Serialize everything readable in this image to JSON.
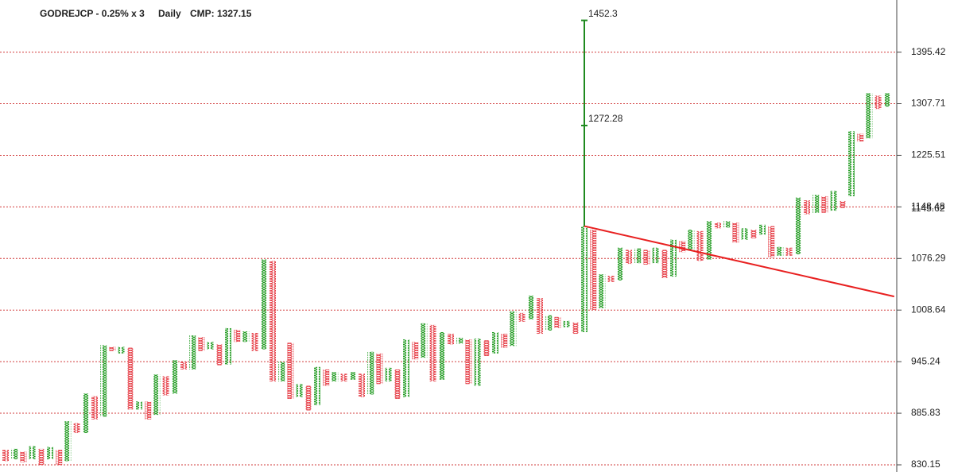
{
  "chart_data": {
    "type": "pnf",
    "title": "GODREJCP - 0.25% x 3",
    "timeframe": "Daily",
    "cmp_label": "CMP: 1327.15",
    "colors": {
      "X": "#1f9a1f",
      "O": "#e6414a",
      "title": "#222222",
      "timeframe": "#1f9a1f",
      "cmp": "#e02020"
    },
    "log_scale": true,
    "grid": true,
    "ylim": [
      822.7,
      1490
    ],
    "yticks": [
      830.15,
      885.83,
      945.24,
      1008.64,
      1076.29,
      1148.48,
      1225.51,
      1307.71,
      1395.42
    ],
    "columns": [
      {
        "box": "O",
        "high": 846,
        "low": 834
      },
      {
        "box": "X",
        "high": 847,
        "low": 836
      },
      {
        "box": "O",
        "high": 844,
        "low": 833
      },
      {
        "box": "X",
        "high": 850,
        "low": 836
      },
      {
        "box": "O",
        "high": 847,
        "low": 830
      },
      {
        "box": "X",
        "high": 849,
        "low": 836
      },
      {
        "box": "O",
        "high": 846,
        "low": 830
      },
      {
        "box": "X",
        "high": 877,
        "low": 834
      },
      {
        "box": "O",
        "high": 875,
        "low": 864
      },
      {
        "box": "X",
        "high": 908,
        "low": 864
      },
      {
        "box": "O",
        "high": 905,
        "low": 879
      },
      {
        "box": "X",
        "high": 965,
        "low": 882
      },
      {
        "box": "O",
        "high": 963,
        "low": 958
      },
      {
        "box": "X",
        "high": 963,
        "low": 955
      },
      {
        "box": "O",
        "high": 962,
        "low": 890
      },
      {
        "box": "X",
        "high": 899,
        "low": 890
      },
      {
        "box": "O",
        "high": 899,
        "low": 879
      },
      {
        "box": "X",
        "high": 930,
        "low": 884
      },
      {
        "box": "O",
        "high": 928,
        "low": 906
      },
      {
        "box": "X",
        "high": 947,
        "low": 908
      },
      {
        "box": "O",
        "high": 945,
        "low": 936
      },
      {
        "box": "X",
        "high": 977,
        "low": 936
      },
      {
        "box": "O",
        "high": 975,
        "low": 958
      },
      {
        "box": "X",
        "high": 969,
        "low": 960
      },
      {
        "box": "O",
        "high": 966,
        "low": 941
      },
      {
        "box": "X",
        "high": 986,
        "low": 942
      },
      {
        "box": "O",
        "high": 984,
        "low": 969
      },
      {
        "box": "X",
        "high": 982,
        "low": 969
      },
      {
        "box": "O",
        "high": 980,
        "low": 958
      },
      {
        "box": "X",
        "high": 1075,
        "low": 960
      },
      {
        "box": "O",
        "high": 1073,
        "low": 922
      },
      {
        "box": "X",
        "high": 945,
        "low": 922
      },
      {
        "box": "O",
        "high": 968,
        "low": 902
      },
      {
        "box": "X",
        "high": 919,
        "low": 904
      },
      {
        "box": "O",
        "high": 917,
        "low": 889
      },
      {
        "box": "X",
        "high": 939,
        "low": 895
      },
      {
        "box": "O",
        "high": 936,
        "low": 917
      },
      {
        "box": "X",
        "high": 933,
        "low": 922
      },
      {
        "box": "O",
        "high": 931,
        "low": 922
      },
      {
        "box": "X",
        "high": 933,
        "low": 924
      },
      {
        "box": "O",
        "high": 931,
        "low": 904
      },
      {
        "box": "X",
        "high": 957,
        "low": 907
      },
      {
        "box": "O",
        "high": 955,
        "low": 919
      },
      {
        "box": "X",
        "high": 938,
        "low": 922
      },
      {
        "box": "O",
        "high": 936,
        "low": 902
      },
      {
        "box": "X",
        "high": 972,
        "low": 904
      },
      {
        "box": "O",
        "high": 969,
        "low": 948
      },
      {
        "box": "X",
        "high": 992,
        "low": 950
      },
      {
        "box": "O",
        "high": 990,
        "low": 922
      },
      {
        "box": "X",
        "high": 981,
        "low": 924
      },
      {
        "box": "O",
        "high": 979,
        "low": 966
      },
      {
        "box": "X",
        "high": 974,
        "low": 967
      },
      {
        "box": "O",
        "high": 972,
        "low": 919
      },
      {
        "box": "X",
        "high": 973,
        "low": 917
      },
      {
        "box": "O",
        "high": 971,
        "low": 952
      },
      {
        "box": "X",
        "high": 981,
        "low": 955
      },
      {
        "box": "O",
        "high": 979,
        "low": 962
      },
      {
        "box": "X",
        "high": 1007,
        "low": 964
      },
      {
        "box": "O",
        "high": 1005,
        "low": 994
      },
      {
        "box": "X",
        "high": 1027,
        "low": 997
      },
      {
        "box": "O",
        "high": 1024,
        "low": 979
      },
      {
        "box": "X",
        "high": 1002,
        "low": 983
      },
      {
        "box": "O",
        "high": 1000,
        "low": 986
      },
      {
        "box": "X",
        "high": 995,
        "low": 987
      },
      {
        "box": "O",
        "high": 993,
        "low": 979
      },
      {
        "box": "X",
        "high": 1121,
        "low": 981
      },
      {
        "box": "O",
        "high": 1116,
        "low": 1009
      },
      {
        "box": "X",
        "high": 1055,
        "low": 1011
      },
      {
        "box": "O",
        "high": 1053,
        "low": 1045
      },
      {
        "box": "X",
        "high": 1091,
        "low": 1047
      },
      {
        "box": "O",
        "high": 1088,
        "low": 1069
      },
      {
        "box": "X",
        "high": 1090,
        "low": 1070
      },
      {
        "box": "O",
        "high": 1088,
        "low": 1068
      },
      {
        "box": "X",
        "high": 1091,
        "low": 1070
      },
      {
        "box": "O",
        "high": 1088,
        "low": 1050
      },
      {
        "box": "X",
        "high": 1102,
        "low": 1052
      },
      {
        "box": "O",
        "high": 1100,
        "low": 1085
      },
      {
        "box": "X",
        "high": 1116,
        "low": 1087
      },
      {
        "box": "O",
        "high": 1114,
        "low": 1073
      },
      {
        "box": "X",
        "high": 1128,
        "low": 1075
      },
      {
        "box": "O",
        "high": 1126,
        "low": 1118
      },
      {
        "box": "X",
        "high": 1128,
        "low": 1119
      },
      {
        "box": "O",
        "high": 1126,
        "low": 1098
      },
      {
        "box": "X",
        "high": 1118,
        "low": 1102
      },
      {
        "box": "O",
        "high": 1116,
        "low": 1104
      },
      {
        "box": "X",
        "high": 1123,
        "low": 1109
      },
      {
        "box": "O",
        "high": 1121,
        "low": 1078
      },
      {
        "box": "X",
        "high": 1092,
        "low": 1080
      },
      {
        "box": "O",
        "high": 1091,
        "low": 1080
      },
      {
        "box": "X",
        "high": 1162,
        "low": 1082
      },
      {
        "box": "O",
        "high": 1158,
        "low": 1138
      },
      {
        "box": "X",
        "high": 1166,
        "low": 1140
      },
      {
        "box": "O",
        "high": 1164,
        "low": 1140
      },
      {
        "box": "X",
        "high": 1172,
        "low": 1143
      },
      {
        "box": "O",
        "high": 1157,
        "low": 1147
      },
      {
        "box": "X",
        "high": 1263,
        "low": 1164
      },
      {
        "box": "O",
        "high": 1259,
        "low": 1247
      },
      {
        "box": "X",
        "high": 1325,
        "low": 1252
      },
      {
        "box": "O",
        "high": 1321,
        "low": 1299
      },
      {
        "box": "X",
        "high": 1325,
        "low": 1303
      }
    ],
    "target": {
      "x": 65,
      "base": 1121,
      "values": [
        1272.28,
        1452.3
      ],
      "color": "#1f8a1f"
    },
    "trendline": {
      "x": [
        65,
        99.8
      ],
      "values": [
        1121,
        1026
      ],
      "color": "#e82020"
    },
    "reversal_marker": 1145.62
  }
}
